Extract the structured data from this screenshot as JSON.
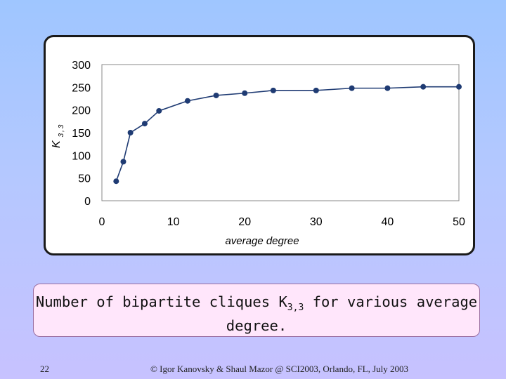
{
  "chart_data": {
    "type": "line",
    "title": "",
    "xlabel": "average degree",
    "ylabel": {
      "main": "K",
      "sub": "3,3"
    },
    "xlim": [
      0,
      50
    ],
    "ylim": [
      0,
      300
    ],
    "xticks": [
      0,
      10,
      20,
      30,
      40,
      50
    ],
    "yticks": [
      0,
      50,
      100,
      150,
      200,
      250,
      300
    ],
    "grid": false,
    "legend": "none",
    "series": [
      {
        "color": "#1f3b73",
        "x": [
          2,
          3,
          4,
          6,
          8,
          12,
          16,
          20,
          24,
          30,
          35,
          40,
          45,
          50
        ],
        "y": [
          43,
          86,
          150,
          170,
          198,
          220,
          232,
          237,
          243,
          243,
          248,
          248,
          251,
          251
        ]
      }
    ]
  },
  "caption": {
    "line1_prefix": "Number of bipartite cliques K",
    "line1_sub": "3,3",
    "line1_suffix": " for various average",
    "line2": "degree."
  },
  "footer": {
    "page_number": "22",
    "credit": "© Igor Kanovsky & Shaul Mazor @ SCI2003, Orlando, FL, July 2003"
  }
}
